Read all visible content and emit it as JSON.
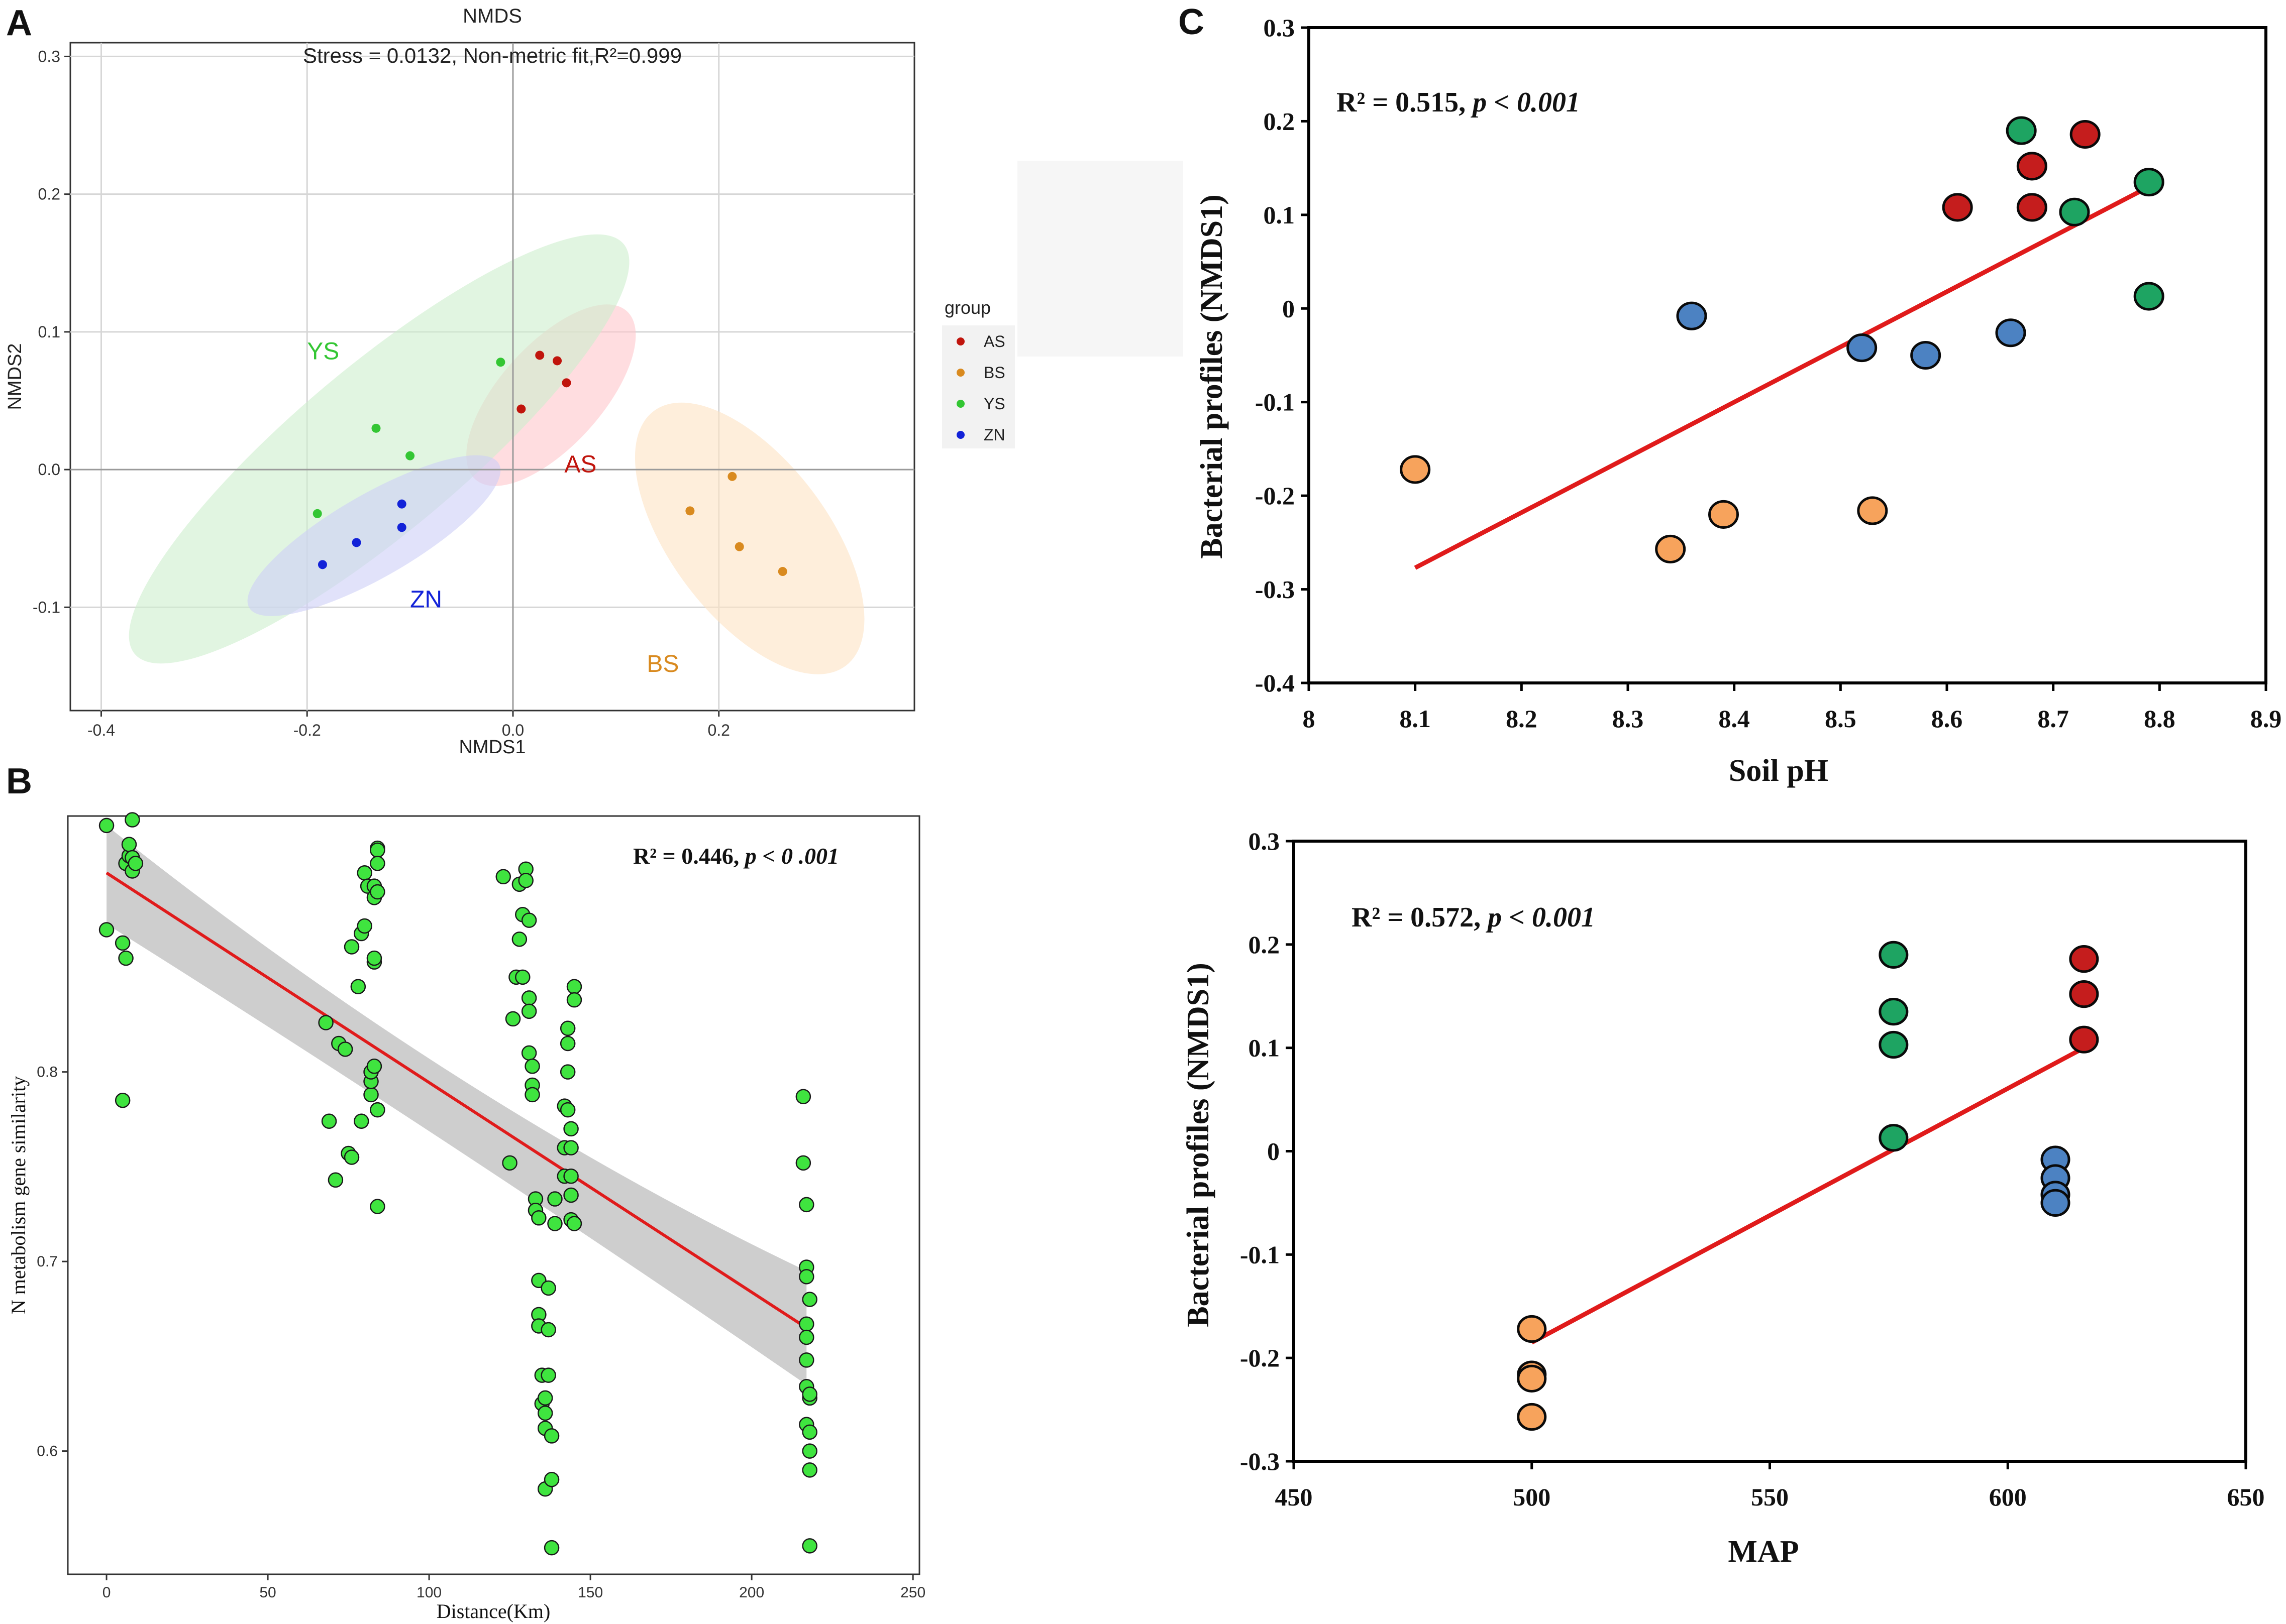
{
  "panel_labels": {
    "a": "A",
    "b": "B",
    "c": "C"
  },
  "chart_data": [
    {
      "id": "A",
      "type": "scatter",
      "title": "NMDS",
      "subtitle": "Stress = 0.0132, Non-metric fit,R²=0.999",
      "xlabel": "NMDS1",
      "ylabel": "NMDS2",
      "xlim": [
        -0.43,
        0.39
      ],
      "ylim": [
        -0.175,
        0.31
      ],
      "xticks": [
        -0.4,
        -0.2,
        0.0,
        0.2
      ],
      "xtick_labels": [
        "-0.4",
        "-0.2",
        "0.0",
        "0.2"
      ],
      "yticks": [
        -0.1,
        0.0,
        0.1,
        0.2,
        0.3
      ],
      "ytick_labels": [
        "-0.1",
        "0.0",
        "0.1",
        "0.2",
        "0.3"
      ],
      "grid": true,
      "legend_title": "group",
      "legend_position": "right",
      "series": [
        {
          "name": "AS",
          "color": "#c0140c",
          "fill": "#ffc6cc",
          "points": [
            [
              0.008,
              0.044
            ],
            [
              0.026,
              0.083
            ],
            [
              0.043,
              0.079
            ],
            [
              0.052,
              0.063
            ]
          ],
          "ellipse": {
            "cx": 0.037,
            "cy": 0.054,
            "rx": 0.11,
            "ry": 0.037,
            "angle": 48
          }
        },
        {
          "name": "BS",
          "color": "#d98a1f",
          "fill": "#fde3c3",
          "points": [
            [
              0.172,
              -0.03
            ],
            [
              0.213,
              -0.005
            ],
            [
              0.22,
              -0.056
            ],
            [
              0.262,
              -0.074
            ]
          ],
          "ellipse": {
            "cx": 0.23,
            "cy": -0.05,
            "rx": 0.155,
            "ry": 0.057,
            "angle": -53
          }
        },
        {
          "name": "YS",
          "color": "#33c633",
          "fill": "#cdeecd",
          "points": [
            [
              -0.19,
              -0.032
            ],
            [
              -0.133,
              0.03
            ],
            [
              -0.1,
              0.01
            ],
            [
              -0.012,
              0.078
            ]
          ],
          "ellipse": {
            "cx": -0.13,
            "cy": 0.015,
            "rx": 0.31,
            "ry": 0.06,
            "angle": 40
          }
        },
        {
          "name": "ZN",
          "color": "#1222d8",
          "fill": "#cdcff6",
          "points": [
            [
              -0.185,
              -0.069
            ],
            [
              -0.152,
              -0.053
            ],
            [
              -0.108,
              -0.042
            ],
            [
              -0.108,
              -0.025
            ]
          ],
          "ellipse": {
            "cx": -0.135,
            "cy": -0.048,
            "rx": 0.14,
            "ry": 0.03,
            "angle": 30
          }
        }
      ],
      "annotations": [
        {
          "text": "YS",
          "x": -0.2,
          "y": 0.08,
          "color": "#33c633"
        },
        {
          "text": "AS",
          "x": 0.05,
          "y": -0.002,
          "color": "#c0140c"
        },
        {
          "text": "ZN",
          "x": -0.1,
          "y": -0.1,
          "color": "#1222d8"
        },
        {
          "text": "BS",
          "x": 0.13,
          "y": -0.147,
          "color": "#d98a1f"
        }
      ]
    },
    {
      "id": "B",
      "type": "scatter",
      "title": "",
      "xlabel": "Distance(Km)",
      "ylabel": "N metabolism gene similarity",
      "xlim": [
        -12,
        252
      ],
      "ylim": [
        0.535,
        0.935
      ],
      "xticks": [
        0,
        50,
        100,
        150,
        200,
        250
      ],
      "xtick_labels": [
        "0",
        "50",
        "100",
        "150",
        "200",
        "250"
      ],
      "yticks": [
        0.6,
        0.7,
        0.8
      ],
      "ytick_labels": [
        "0.6",
        "0.7",
        "0.8"
      ],
      "annotation_r2": "R² = 0.446",
      "annotation_p": "p < 0 .001",
      "fit": {
        "x": [
          0,
          217
        ],
        "y": [
          0.905,
          0.665
        ],
        "color": "#e01b1b"
      },
      "band": {
        "upper": [
          0.93,
          0.695
        ],
        "mid_upper": 0.795,
        "lower": [
          0.878,
          0.635
        ],
        "mid_lower": 0.75
      },
      "point_color": "#3fe43f",
      "x": [
        0,
        0,
        5,
        5,
        6,
        6,
        7,
        7,
        8,
        8,
        8,
        9,
        68,
        69,
        71,
        72,
        74,
        75,
        76,
        76,
        78,
        79,
        79,
        80,
        80,
        81,
        82,
        82,
        82,
        83,
        83,
        83,
        83,
        83,
        84,
        84,
        84,
        84,
        84,
        84,
        123,
        125,
        126,
        127,
        128,
        128,
        129,
        129,
        130,
        130,
        131,
        131,
        131,
        131,
        132,
        132,
        132,
        133,
        133,
        134,
        134,
        134,
        134,
        135,
        135,
        136,
        136,
        136,
        136,
        137,
        137,
        137,
        138,
        138,
        138,
        139,
        139,
        142,
        142,
        142,
        143,
        143,
        143,
        143,
        144,
        144,
        144,
        144,
        144,
        145,
        145,
        145,
        216,
        216,
        217,
        217,
        217,
        217,
        217,
        217,
        217,
        217,
        218,
        218,
        218,
        218,
        218,
        218,
        218
      ],
      "y": [
        0.93,
        0.875,
        0.868,
        0.785,
        0.86,
        0.91,
        0.914,
        0.92,
        0.906,
        0.913,
        0.933,
        0.91,
        0.826,
        0.774,
        0.743,
        0.815,
        0.812,
        0.757,
        0.755,
        0.866,
        0.845,
        0.774,
        0.873,
        0.877,
        0.905,
        0.898,
        0.788,
        0.795,
        0.8,
        0.858,
        0.86,
        0.892,
        0.898,
        0.803,
        0.918,
        0.917,
        0.91,
        0.895,
        0.78,
        0.729,
        0.903,
        0.752,
        0.828,
        0.85,
        0.899,
        0.87,
        0.883,
        0.85,
        0.907,
        0.901,
        0.88,
        0.839,
        0.832,
        0.81,
        0.803,
        0.793,
        0.788,
        0.733,
        0.727,
        0.723,
        0.69,
        0.672,
        0.666,
        0.64,
        0.625,
        0.58,
        0.612,
        0.628,
        0.62,
        0.686,
        0.664,
        0.64,
        0.608,
        0.585,
        0.549,
        0.72,
        0.733,
        0.782,
        0.76,
        0.745,
        0.823,
        0.815,
        0.8,
        0.78,
        0.77,
        0.76,
        0.745,
        0.735,
        0.722,
        0.845,
        0.838,
        0.72,
        0.787,
        0.752,
        0.73,
        0.697,
        0.692,
        0.667,
        0.66,
        0.648,
        0.634,
        0.614,
        0.6,
        0.59,
        0.628,
        0.55,
        0.68,
        0.61,
        0.63
      ]
    },
    {
      "id": "C1",
      "type": "scatter",
      "title": "",
      "xlabel": "Soil pH",
      "ylabel": "Bacterial profiles (NMDS1)",
      "xlim": [
        8.0,
        8.9
      ],
      "ylim": [
        -0.4,
        0.3
      ],
      "xticks": [
        8.0,
        8.1,
        8.2,
        8.3,
        8.4,
        8.5,
        8.6,
        8.7,
        8.8,
        8.9
      ],
      "xtick_labels": [
        "8",
        "8.1",
        "8.2",
        "8.3",
        "8.4",
        "8.5",
        "8.6",
        "8.7",
        "8.8",
        "8.9"
      ],
      "yticks": [
        -0.4,
        -0.3,
        -0.2,
        -0.1,
        0.0,
        0.1,
        0.2,
        0.3
      ],
      "ytick_labels": [
        "-0.4",
        "-0.3",
        "-0.2",
        "-0.1",
        "0",
        "0.1",
        "0.2",
        "0.3"
      ],
      "annotation_r2": "R² = 0.515,",
      "annotation_p": "p < 0.001",
      "fit": {
        "x": [
          8.1,
          8.79
        ],
        "y": [
          -0.277,
          0.13
        ],
        "color": "#e01b1b"
      },
      "series": [
        {
          "name": "AS",
          "color": "#c51d1d",
          "x": [
            8.61,
            8.68,
            8.68,
            8.73
          ],
          "y": [
            0.108,
            0.152,
            0.108,
            0.186
          ]
        },
        {
          "name": "YS",
          "color": "#1ea462",
          "x": [
            8.67,
            8.72,
            8.79,
            8.79
          ],
          "y": [
            0.19,
            0.103,
            0.135,
            0.013
          ]
        },
        {
          "name": "ZN",
          "color": "#4c82c2",
          "x": [
            8.36,
            8.52,
            8.58,
            8.66
          ],
          "y": [
            -0.008,
            -0.042,
            -0.05,
            -0.026
          ]
        },
        {
          "name": "BS",
          "color": "#f7a35c",
          "x": [
            8.1,
            8.34,
            8.39,
            8.53
          ],
          "y": [
            -0.172,
            -0.257,
            -0.22,
            -0.216
          ]
        }
      ]
    },
    {
      "id": "C2",
      "type": "scatter",
      "title": "",
      "xlabel": "MAP",
      "ylabel": "Bacterial profiles (NMDS1)",
      "xlim": [
        450,
        650
      ],
      "ylim": [
        -0.3,
        0.3
      ],
      "xticks": [
        450,
        500,
        550,
        600,
        650
      ],
      "xtick_labels": [
        "450",
        "500",
        "550",
        "600",
        "650"
      ],
      "yticks": [
        -0.3,
        -0.2,
        -0.1,
        0.0,
        0.1,
        0.2,
        0.3
      ],
      "ytick_labels": [
        "-0.3",
        "-0.2",
        "-0.1",
        "0",
        "0.1",
        "0.2",
        "0.3"
      ],
      "annotation_r2": "R² = 0.572,",
      "annotation_p": "p < 0.001",
      "fit": {
        "x": [
          500,
          616
        ],
        "y": [
          -0.185,
          0.1
        ],
        "color": "#e01b1b"
      },
      "series": [
        {
          "name": "AS",
          "color": "#c51d1d",
          "x": [
            616,
            616,
            616
          ],
          "y": [
            0.186,
            0.152,
            0.108
          ]
        },
        {
          "name": "YS",
          "color": "#1ea462",
          "x": [
            576,
            576,
            576,
            576
          ],
          "y": [
            0.19,
            0.135,
            0.103,
            0.013
          ]
        },
        {
          "name": "ZN",
          "color": "#4c82c2",
          "x": [
            610,
            610,
            610,
            610
          ],
          "y": [
            -0.008,
            -0.026,
            -0.042,
            -0.05
          ]
        },
        {
          "name": "BS",
          "color": "#f7a35c",
          "x": [
            500,
            500,
            500,
            500
          ],
          "y": [
            -0.172,
            -0.216,
            -0.22,
            -0.257
          ]
        }
      ]
    }
  ]
}
